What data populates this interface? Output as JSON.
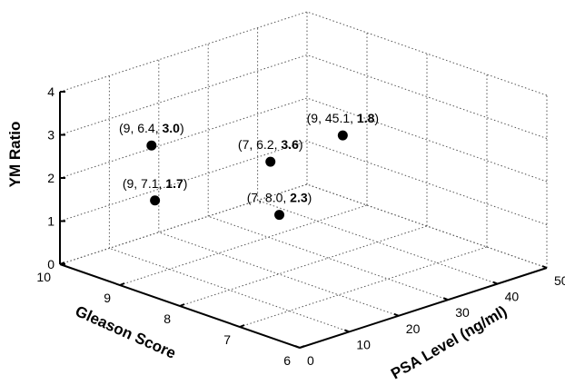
{
  "chart_data": {
    "type": "scatter",
    "title": "",
    "axes": {
      "x": {
        "label": "PSA Level (ng/ml)",
        "range": [
          0,
          50
        ],
        "ticks": [
          0,
          10,
          20,
          30,
          40,
          50
        ]
      },
      "y": {
        "label": "Gleason Score",
        "range": [
          6,
          10
        ],
        "ticks": [
          6,
          7,
          8,
          9,
          10
        ]
      },
      "z": {
        "label": "YM Ratio",
        "range": [
          0,
          4
        ],
        "ticks": [
          0,
          1,
          2,
          3,
          4
        ]
      }
    },
    "grid": true,
    "points": [
      {
        "gleason": 9,
        "psa": 6.4,
        "ym": 3.0,
        "label_plain": "(9, 6.4, ",
        "label_bold": "3.0",
        "label_end": ")"
      },
      {
        "gleason": 9,
        "psa": 7.1,
        "ym": 1.7,
        "label_plain": "(9, 7.1, ",
        "label_bold": "1.7",
        "label_end": ")"
      },
      {
        "gleason": 7,
        "psa": 6.2,
        "ym": 3.6,
        "label_plain": "(7, 6.2, ",
        "label_bold": "3.6",
        "label_end": ")"
      },
      {
        "gleason": 7,
        "psa": 8.0,
        "ym": 2.3,
        "label_plain": "(7, 8.0, ",
        "label_bold": "2.3",
        "label_end": ")"
      },
      {
        "gleason": 9,
        "psa": 45.1,
        "ym": 1.8,
        "label_plain": "(9, 45.1, ",
        "label_bold": "1.8",
        "label_end": ")"
      }
    ]
  }
}
